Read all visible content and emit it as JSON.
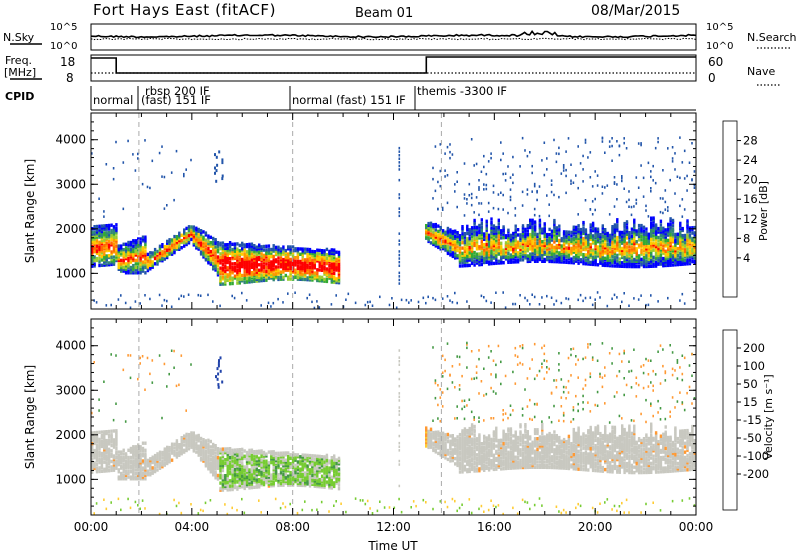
{
  "header": {
    "title": "Fort Hays East (fitACF)",
    "beam": "Beam 01",
    "date": "08/Mar/2015"
  },
  "strip": {
    "nsky_label": "N.Sky",
    "nsearch_label": "N.Search",
    "nsky_ticks": [
      "10^5",
      "10^0"
    ],
    "nsearch_ticks": [
      "10^5",
      "10^0"
    ],
    "freq_label_1": "Freq.",
    "freq_label_2": "[MHz]",
    "freq_ticks": [
      "18",
      "8"
    ],
    "nave_label": "Nave",
    "nave_ticks": [
      "60",
      "0"
    ],
    "cpid_label": "CPID",
    "cpid_segments": [
      {
        "label": "normal",
        "start": 0.0
      },
      {
        "label": "rbsp 200 IF",
        "start": 1.0
      },
      {
        "label": "(fast) 151 IF",
        "start": 1.0
      },
      {
        "label": "normal (fast) 151 IF",
        "start": 8.0
      },
      {
        "label": "themis -3300 IF",
        "start": 13.3
      }
    ]
  },
  "chart_data": [
    {
      "type": "heatmap",
      "name": "power",
      "ylabel": "Slant Range [km]",
      "xlabel": "",
      "xlim": [
        0,
        24
      ],
      "ylim": [
        200,
        4600
      ],
      "yticks": [
        1000,
        2000,
        3000,
        4000
      ],
      "colorbar": {
        "label": "Power [dB]",
        "ticks": [
          "28",
          "24",
          "20",
          "16",
          "12",
          "8",
          "4"
        ],
        "colors": [
          "#ff0000",
          "#ff6a00",
          "#ff9900",
          "#ffcc00",
          "#99cc33",
          "#33aa33",
          "#338877",
          "#2255aa",
          "#0000ff"
        ]
      }
    },
    {
      "type": "heatmap",
      "name": "velocity",
      "ylabel": "Slant Range [km]",
      "xlabel": "Time UT",
      "xlim": [
        0,
        24
      ],
      "ylim": [
        200,
        4600
      ],
      "yticks": [
        1000,
        2000,
        3000,
        4000
      ],
      "xticks": [
        "00:00",
        "04:00",
        "08:00",
        "12:00",
        "16:00",
        "20:00",
        "00:00"
      ],
      "colorbar": {
        "label": "Velocity [m s⁻¹]",
        "ticks": [
          "200",
          "100",
          "50",
          "15",
          "-15",
          "-50",
          "-100",
          "-200"
        ],
        "colors": [
          "#2244aa",
          "#336688",
          "#449944",
          "#77cc33",
          "#c8c8c0",
          "#c8c8c0",
          "#ffcc33",
          "#ff9933",
          "#ff6600",
          "#ff0000"
        ]
      }
    }
  ],
  "colors": {
    "ground": "#c8c8c0",
    "axis": "#000000",
    "divider": "#aaaaaa"
  }
}
